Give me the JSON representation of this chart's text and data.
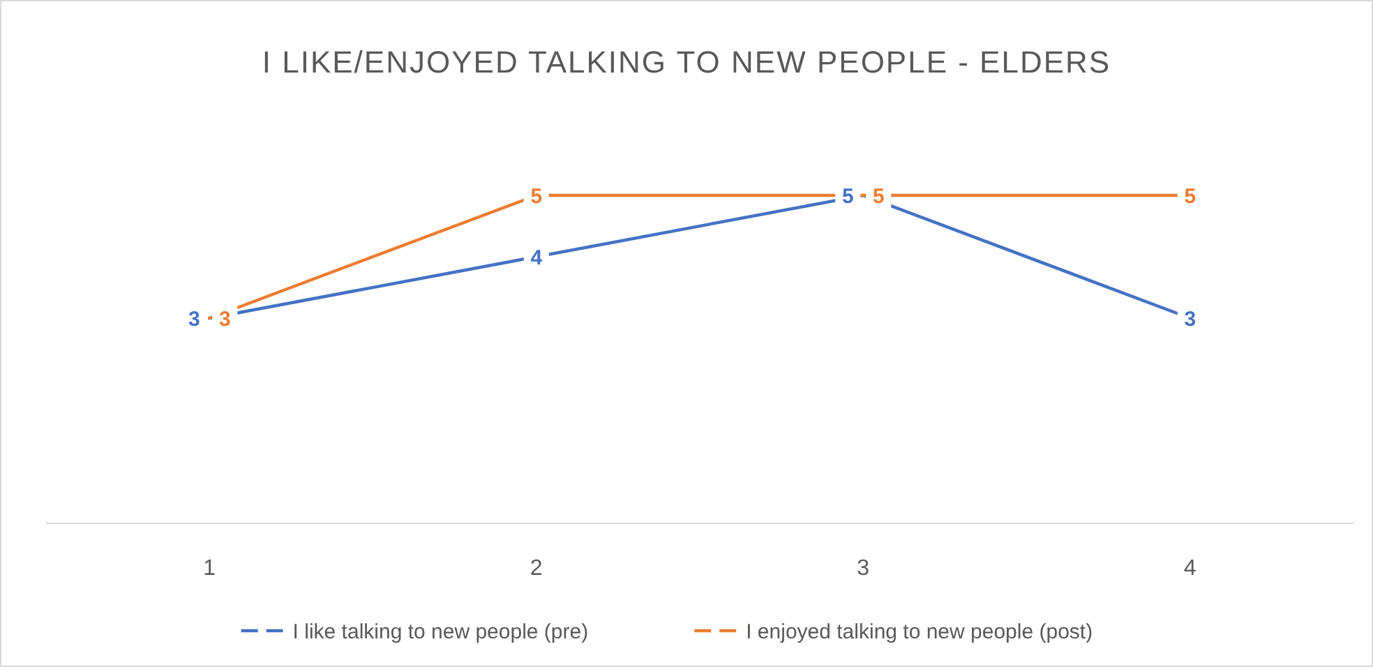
{
  "chart_data": {
    "type": "line",
    "title": "I LIKE/ENJOYED TALKING TO NEW PEOPLE - ELDERS",
    "categories": [
      "1",
      "2",
      "3",
      "4"
    ],
    "series": [
      {
        "name": "I like talking to new people (pre)",
        "color": "#4472c4",
        "values": [
          3,
          4,
          5,
          3
        ]
      },
      {
        "name": "I enjoyed talking to new people (post)",
        "color": "#ed7d31",
        "values": [
          3,
          5,
          5,
          5
        ]
      }
    ],
    "tick_labels": "x",
    "marker": "none",
    "data_labels": true,
    "legend": "bottom",
    "grid": false,
    "line_style": "solid"
  }
}
